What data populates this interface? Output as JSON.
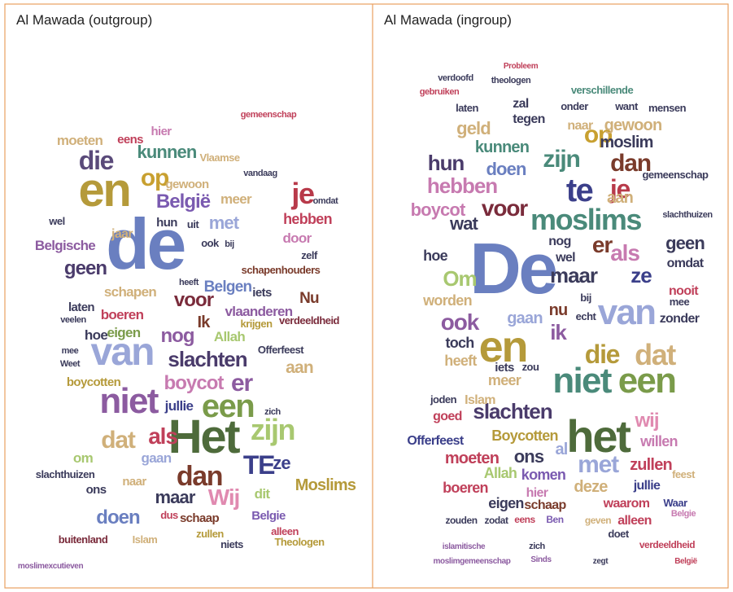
{
  "panels": [
    {
      "title": "Al Mawada (outgroup)",
      "words": [
        "de",
        "en",
        "Het",
        "van",
        "niet",
        "een",
        "zijn",
        "die",
        "je",
        "TE",
        "dan",
        "er",
        "slachten",
        "boycot",
        "voor",
        "op",
        "kunnen",
        "België",
        "dat",
        "als",
        "maar",
        "Wij",
        "doen",
        "Moslims",
        "met",
        "meer",
        "hebben",
        "door",
        "geen",
        "Belgische",
        "jaar",
        "nog",
        "Ik",
        "eigen",
        "boeren",
        "schapen",
        "hoe",
        "Belgen",
        "Nu",
        "iets",
        "vlaanderen",
        "aan",
        "Allah",
        "Offerfeest",
        "verdeeldheid",
        "schapenhouders",
        "hun",
        "uit",
        "gewoon",
        "Vlaamse",
        "moeten",
        "eens",
        "hier",
        "zelf",
        "wel",
        "laten",
        "jullie",
        "boycotten",
        "ze",
        "dit",
        "Belgie",
        "alleen",
        "Theologen",
        "gaan",
        "om",
        "ons",
        "slachthuizen",
        "naar",
        "schaap",
        "zullen",
        "dus",
        "buitenland",
        "Islam",
        "niets",
        "moslimexcutieven",
        "vandaag",
        "gemeenschap",
        "omdat",
        "krijgen",
        "ook",
        "bij",
        "heeft",
        "zich",
        "Weet",
        "mee",
        "veelen"
      ]
    },
    {
      "title": "Al Mawada (ingroup)",
      "words": [
        "De",
        "en",
        "het",
        "niet",
        "een",
        "van",
        "moslims",
        "te",
        "je",
        "die",
        "dat",
        "er",
        "als",
        "ze",
        "zijn",
        "dan",
        "op",
        "hun",
        "doen",
        "hebben",
        "voor",
        "boycot",
        "wat",
        "Om",
        "ook",
        "ik",
        "maar",
        "gaan",
        "toch",
        "heeft",
        "meer",
        "slachten",
        "Boycotten",
        "Offerfeest",
        "ons",
        "moeten",
        "al",
        "met",
        "wij",
        "willen",
        "zullen",
        "jullie",
        "deze",
        "waarom",
        "alleen",
        "boeren",
        "eigen",
        "schaap",
        "hier",
        "Allah",
        "komen",
        "geld",
        "kunnen",
        "moslim",
        "gewoon",
        "aan",
        "geen",
        "omdat",
        "nooit",
        "zonder",
        "hoe",
        "worden",
        "nog",
        "bij",
        "wel",
        "nu",
        "zal",
        "naar",
        "onder",
        "want",
        "mensen",
        "laten",
        "tegen",
        "verschillende",
        "gebruiken",
        "theologen",
        "verdoofd",
        "Probleem",
        "gemeenschap",
        "slachthuizen",
        "Islam",
        "joden",
        "goed",
        "iets",
        "zou",
        "echt",
        "mee",
        "feest",
        "Waar",
        "doet",
        "verdeeldheid",
        "Belgie",
        "zodat",
        "eens",
        "Ben",
        "geven",
        "zouden",
        "zich",
        "islamitische",
        "moslimgemeenschap",
        "Sinds",
        "zegt",
        "België"
      ]
    }
  ]
}
